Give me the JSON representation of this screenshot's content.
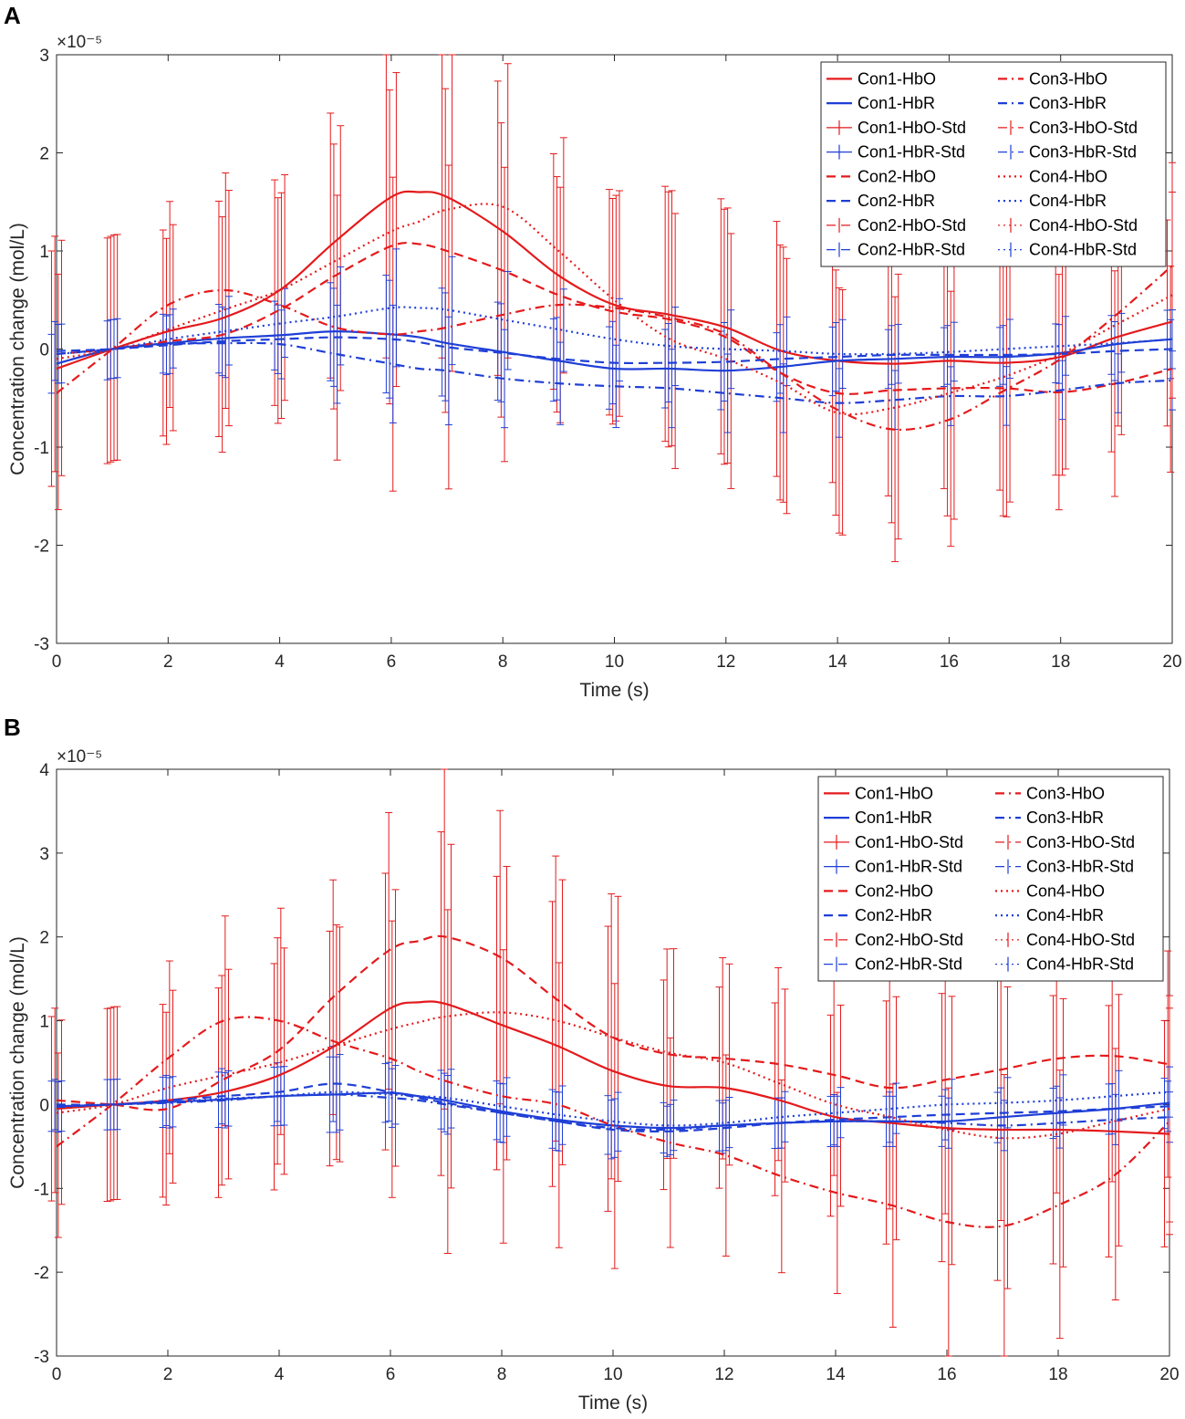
{
  "figure": {
    "panel_labels": [
      "A",
      "B"
    ]
  },
  "chart_data": [
    {
      "type": "line",
      "panel": "A",
      "title": "",
      "xlabel": "Time (s)",
      "ylabel": "Concentration change (mol/L)",
      "exponent_label": "×10⁻⁵",
      "xlim": [
        0,
        20
      ],
      "ylim": [
        -3,
        3
      ],
      "x_ticks": [
        0,
        2,
        4,
        6,
        8,
        10,
        12,
        14,
        16,
        18,
        20
      ],
      "y_ticks": [
        -3,
        -2,
        -1,
        0,
        1,
        2,
        3
      ],
      "x_tick_labels": [
        "0",
        "2",
        "4",
        "6",
        "8",
        "10",
        "12",
        "14",
        "16",
        "18",
        "20"
      ],
      "y_tick_labels": [
        "-3",
        "-2",
        "-1",
        "0",
        "1",
        "2",
        "3"
      ],
      "grid": false,
      "legend_position": "top-right",
      "x": [
        0,
        1,
        2,
        3,
        4,
        5,
        6,
        6.5,
        7,
        8,
        9,
        10,
        11,
        12,
        13,
        14,
        15,
        16,
        17,
        18,
        19,
        20
      ],
      "series": [
        {
          "name": "Con1-HbO",
          "color": "#e41a1c",
          "style": "solid",
          "values": [
            -0.2,
            0.0,
            0.18,
            0.32,
            0.6,
            1.1,
            1.55,
            1.6,
            1.55,
            1.2,
            0.75,
            0.45,
            0.35,
            0.22,
            -0.02,
            -0.12,
            -0.15,
            -0.12,
            -0.14,
            -0.08,
            0.12,
            0.28
          ]
        },
        {
          "name": "Con1-HbR",
          "color": "#1f3fd6",
          "style": "solid",
          "values": [
            -0.15,
            0.0,
            0.06,
            0.11,
            0.14,
            0.18,
            0.15,
            0.12,
            0.06,
            -0.03,
            -0.12,
            -0.2,
            -0.2,
            -0.22,
            -0.18,
            -0.12,
            -0.1,
            -0.08,
            -0.08,
            -0.04,
            0.05,
            0.1
          ]
        },
        {
          "name": "Con2-HbO",
          "color": "#e41a1c",
          "style": "dash",
          "values": [
            -0.05,
            0.0,
            0.08,
            0.15,
            0.4,
            0.75,
            1.05,
            1.07,
            1.0,
            0.8,
            0.55,
            0.38,
            0.3,
            0.12,
            -0.25,
            -0.45,
            -0.42,
            -0.4,
            -0.4,
            -0.44,
            -0.35,
            -0.2
          ]
        },
        {
          "name": "Con2-HbR",
          "color": "#1f3fd6",
          "style": "dash",
          "values": [
            -0.02,
            0.0,
            0.04,
            0.08,
            0.1,
            0.12,
            0.1,
            0.07,
            0.02,
            -0.04,
            -0.1,
            -0.14,
            -0.14,
            -0.13,
            -0.1,
            -0.08,
            -0.06,
            -0.06,
            -0.06,
            -0.05,
            -0.02,
            0.0
          ]
        },
        {
          "name": "Con3-HbO",
          "color": "#e41a1c",
          "style": "dashdot",
          "values": [
            -0.45,
            0.0,
            0.45,
            0.6,
            0.45,
            0.22,
            0.15,
            0.18,
            0.22,
            0.35,
            0.45,
            0.42,
            0.32,
            0.15,
            -0.25,
            -0.62,
            -0.82,
            -0.72,
            -0.42,
            -0.1,
            0.35,
            0.85
          ]
        },
        {
          "name": "Con3-HbR",
          "color": "#1f3fd6",
          "style": "dashdot",
          "values": [
            -0.05,
            0.0,
            0.05,
            0.06,
            0.05,
            -0.05,
            -0.15,
            -0.2,
            -0.22,
            -0.3,
            -0.35,
            -0.38,
            -0.4,
            -0.45,
            -0.5,
            -0.55,
            -0.52,
            -0.48,
            -0.48,
            -0.42,
            -0.35,
            -0.32
          ]
        },
        {
          "name": "Con4-HbO",
          "color": "#e41a1c",
          "style": "dot",
          "values": [
            -0.1,
            0.0,
            0.2,
            0.4,
            0.6,
            0.9,
            1.2,
            1.3,
            1.42,
            1.45,
            1.0,
            0.5,
            0.1,
            -0.1,
            -0.35,
            -0.65,
            -0.6,
            -0.45,
            -0.28,
            -0.05,
            0.25,
            0.55
          ]
        },
        {
          "name": "Con4-HbR",
          "color": "#1f3fd6",
          "style": "dot",
          "values": [
            -0.05,
            0.0,
            0.1,
            0.18,
            0.26,
            0.33,
            0.42,
            0.42,
            0.4,
            0.3,
            0.2,
            0.1,
            0.03,
            0.0,
            -0.02,
            -0.05,
            -0.05,
            -0.03,
            0.0,
            0.03,
            0.06,
            0.1
          ]
        }
      ],
      "error_bars": {
        "x": [
          0,
          1,
          2,
          3,
          4,
          5,
          6,
          7,
          8,
          9,
          10,
          11,
          12,
          13,
          14,
          15,
          16,
          17,
          18,
          19,
          20
        ],
        "hbo_std": [
          1.2,
          1.15,
          1.05,
          1.2,
          1.15,
          1.35,
          1.6,
          1.65,
          1.5,
          1.2,
          1.15,
          1.3,
          1.3,
          1.3,
          1.25,
          1.35,
          1.3,
          1.3,
          1.2,
          1.15,
          1.05
        ],
        "hbr_std": [
          0.3,
          0.3,
          0.3,
          0.35,
          0.35,
          0.5,
          0.6,
          0.55,
          0.5,
          0.42,
          0.42,
          0.4,
          0.4,
          0.35,
          0.35,
          0.3,
          0.3,
          0.3,
          0.3,
          0.3,
          0.3
        ]
      },
      "legend": [
        "Con1-HbO",
        "Con3-HbO",
        "Con1-HbR",
        "Con3-HbR",
        "Con1-HbO-Std",
        "Con3-HbO-Std",
        "Con1-HbR-Std",
        "Con3-HbR-Std",
        "Con2-HbO",
        "Con4-HbO",
        "Con2-HbR",
        "Con4-HbR",
        "Con2-HbO-Std",
        "Con4-HbO-Std",
        "Con2-HbR-Std",
        "Con4-HbR-Std"
      ]
    },
    {
      "type": "line",
      "panel": "B",
      "title": "",
      "xlabel": "Time (s)",
      "ylabel": "Concentration change (mol/L)",
      "exponent_label": "×10⁻⁵",
      "xlim": [
        0,
        20
      ],
      "ylim": [
        -3,
        4
      ],
      "x_ticks": [
        0,
        2,
        4,
        6,
        8,
        10,
        12,
        14,
        16,
        18,
        20
      ],
      "y_ticks": [
        -3,
        -2,
        -1,
        0,
        1,
        2,
        3,
        4
      ],
      "x_tick_labels": [
        "0",
        "2",
        "4",
        "6",
        "8",
        "10",
        "12",
        "14",
        "16",
        "18",
        "20"
      ],
      "y_tick_labels": [
        "-3",
        "-2",
        "-1",
        "0",
        "1",
        "2",
        "3",
        "4"
      ],
      "grid": false,
      "legend_position": "top-right",
      "x": [
        0,
        1,
        2,
        3,
        4,
        5,
        6,
        6.5,
        7,
        8,
        9,
        10,
        11,
        12,
        13,
        14,
        15,
        16,
        17,
        18,
        19,
        20
      ],
      "series": [
        {
          "name": "Con1-HbO",
          "color": "#e41a1c",
          "style": "solid",
          "values": [
            -0.05,
            0.0,
            0.05,
            0.15,
            0.35,
            0.7,
            1.15,
            1.22,
            1.2,
            0.95,
            0.7,
            0.4,
            0.22,
            0.2,
            0.05,
            -0.15,
            -0.22,
            -0.28,
            -0.3,
            -0.3,
            -0.32,
            -0.35
          ]
        },
        {
          "name": "Con1-HbR",
          "color": "#1f3fd6",
          "style": "solid",
          "values": [
            -0.02,
            0.0,
            0.03,
            0.06,
            0.1,
            0.12,
            0.14,
            0.1,
            0.05,
            -0.08,
            -0.18,
            -0.25,
            -0.28,
            -0.25,
            -0.22,
            -0.2,
            -0.2,
            -0.2,
            -0.15,
            -0.1,
            -0.05,
            0.02
          ]
        },
        {
          "name": "Con2-HbO",
          "color": "#e41a1c",
          "style": "dash",
          "values": [
            0.05,
            0.0,
            -0.05,
            0.3,
            0.65,
            1.3,
            1.85,
            1.95,
            2.0,
            1.75,
            1.25,
            0.8,
            0.6,
            0.55,
            0.48,
            0.35,
            0.2,
            0.3,
            0.42,
            0.55,
            0.58,
            0.48
          ]
        },
        {
          "name": "Con2-HbR",
          "color": "#1f3fd6",
          "style": "dash",
          "values": [
            0.0,
            0.0,
            0.05,
            0.1,
            0.15,
            0.25,
            0.15,
            0.08,
            0.02,
            -0.1,
            -0.2,
            -0.3,
            -0.32,
            -0.28,
            -0.22,
            -0.18,
            -0.15,
            -0.12,
            -0.1,
            -0.08,
            -0.05,
            -0.02
          ]
        },
        {
          "name": "Con3-HbO",
          "color": "#e41a1c",
          "style": "dashdot",
          "values": [
            -0.5,
            0.0,
            0.55,
            1.0,
            1.0,
            0.75,
            0.55,
            0.4,
            0.28,
            0.1,
            0.0,
            -0.25,
            -0.45,
            -0.6,
            -0.85,
            -1.05,
            -1.2,
            -1.4,
            -1.45,
            -1.2,
            -0.85,
            -0.2
          ]
        },
        {
          "name": "Con3-HbR",
          "color": "#1f3fd6",
          "style": "dashdot",
          "values": [
            -0.03,
            0.0,
            0.02,
            0.05,
            0.1,
            0.12,
            0.08,
            0.05,
            0.0,
            -0.1,
            -0.2,
            -0.28,
            -0.3,
            -0.25,
            -0.22,
            -0.2,
            -0.2,
            -0.22,
            -0.25,
            -0.22,
            -0.18,
            -0.15
          ]
        },
        {
          "name": "Con4-HbO",
          "color": "#e41a1c",
          "style": "dot",
          "values": [
            -0.1,
            0.0,
            0.2,
            0.35,
            0.5,
            0.7,
            0.9,
            0.98,
            1.05,
            1.1,
            1.0,
            0.8,
            0.62,
            0.5,
            0.25,
            0.0,
            -0.15,
            -0.3,
            -0.4,
            -0.35,
            -0.2,
            -0.05
          ]
        },
        {
          "name": "Con4-HbR",
          "color": "#1f3fd6",
          "style": "dot",
          "values": [
            -0.02,
            0.0,
            0.03,
            0.07,
            0.1,
            0.15,
            0.12,
            0.1,
            0.08,
            -0.02,
            -0.12,
            -0.2,
            -0.25,
            -0.22,
            -0.15,
            -0.1,
            -0.05,
            0.0,
            0.02,
            0.05,
            0.1,
            0.15
          ]
        }
      ],
      "error_bars": {
        "x": [
          0,
          1,
          2,
          3,
          4,
          5,
          6,
          7,
          8,
          9,
          10,
          11,
          12,
          13,
          14,
          15,
          16,
          17,
          18,
          19,
          20
        ],
        "hbo_std": [
          1.1,
          1.15,
          1.15,
          1.25,
          1.35,
          1.4,
          1.65,
          2.05,
          1.75,
          1.7,
          1.7,
          1.25,
          1.2,
          1.15,
          1.2,
          1.45,
          1.6,
          1.8,
          1.6,
          1.5,
          1.35
        ],
        "hbr_std": [
          0.3,
          0.3,
          0.3,
          0.33,
          0.35,
          0.45,
          0.35,
          0.35,
          0.35,
          0.35,
          0.35,
          0.3,
          0.3,
          0.3,
          0.3,
          0.3,
          0.3,
          0.3,
          0.3,
          0.3,
          0.3
        ]
      },
      "legend": [
        "Con1-HbO",
        "Con3-HbO",
        "Con1-HbR",
        "Con3-HbR",
        "Con1-HbO-Std",
        "Con3-HbO-Std",
        "Con1-HbR-Std",
        "Con3-HbR-Std",
        "Con2-HbO",
        "Con4-HbO",
        "Con2-HbR",
        "Con4-HbR",
        "Con2-HbO-Std",
        "Con4-HbO-Std",
        "Con2-HbR-Std",
        "Con4-HbR-Std"
      ]
    }
  ]
}
